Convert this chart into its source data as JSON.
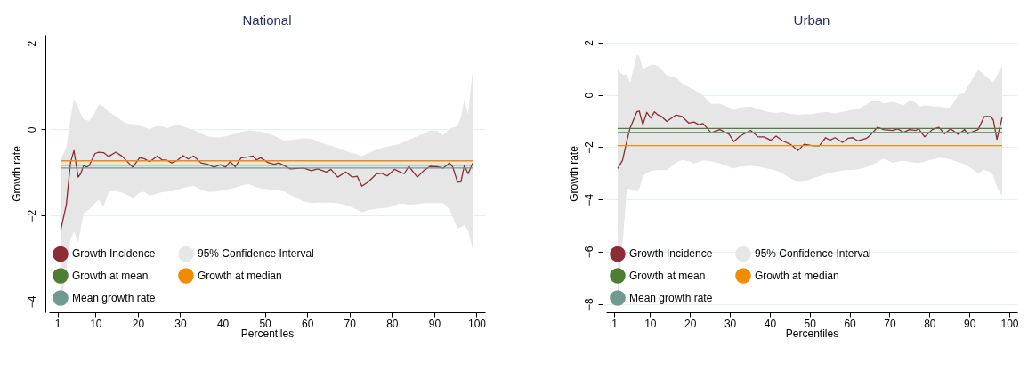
{
  "chart_data": [
    {
      "type": "line",
      "title": "National",
      "xlabel": "Percentiles",
      "ylabel": "Growth rate",
      "xlim": [
        -1,
        102
      ],
      "ylim": [
        -4.25,
        2.2
      ],
      "xticks": [
        1,
        10,
        20,
        30,
        40,
        50,
        60,
        70,
        80,
        90,
        100
      ],
      "yticks": [
        -4,
        -2,
        0,
        2
      ],
      "grid": "y",
      "legend": "bottom left",
      "series": [
        {
          "name": "Growth Incidence",
          "color": "#8b2c36",
          "x": [
            1.8,
            3.1,
            4.1,
            4.9,
            5.9,
            6.5,
            7.2,
            7.9,
            8.5,
            9.9,
            10.8,
            11.9,
            13.1,
            14.8,
            16.2,
            17.7,
            18.8,
            20.4,
            21.5,
            22.8,
            24.6,
            25.7,
            26.9,
            28.0,
            29.2,
            30.7,
            31.9,
            33.2,
            34.9,
            36.5,
            38.0,
            39.5,
            40.7,
            41.8,
            43.0,
            44.4,
            46.1,
            47.2,
            48.0,
            49.0,
            50.7,
            52.2,
            53.3,
            54.5,
            56.0,
            59.1,
            61.0,
            62.5,
            64.5,
            65.6,
            67.2,
            69.1,
            70.6,
            71.8,
            72.9,
            74.4,
            76.4,
            77.5,
            78.9,
            80.6,
            81.7,
            82.9,
            84.0,
            86.0,
            87.5,
            89.0,
            90.6,
            92.1,
            93.6,
            94.4,
            95.5,
            96.3,
            97.1,
            98.0,
            99.1
          ],
          "values": [
            -2.33,
            -1.75,
            -0.77,
            -0.49,
            -1.11,
            -1.03,
            -0.84,
            -0.88,
            -0.84,
            -0.56,
            -0.53,
            -0.54,
            -0.63,
            -0.53,
            -0.62,
            -0.77,
            -0.88,
            -0.66,
            -0.68,
            -0.75,
            -0.62,
            -0.71,
            -0.72,
            -0.78,
            -0.73,
            -0.61,
            -0.69,
            -0.62,
            -0.78,
            -0.81,
            -0.88,
            -0.82,
            -0.88,
            -0.75,
            -0.87,
            -0.66,
            -0.64,
            -0.62,
            -0.71,
            -0.66,
            -0.77,
            -0.81,
            -0.78,
            -0.84,
            -0.92,
            -0.9,
            -0.96,
            -0.92,
            -0.99,
            -0.93,
            -1.11,
            -0.99,
            -1.11,
            -1.09,
            -1.32,
            -1.22,
            -1.03,
            -1.02,
            -1.08,
            -0.93,
            -0.98,
            -1.03,
            -0.86,
            -1.11,
            -0.96,
            -0.86,
            -0.87,
            -0.9,
            -0.78,
            -0.88,
            -1.23,
            -1.22,
            -0.84,
            -1.03,
            -0.78
          ],
          "upper": [
            -0.7,
            -0.42,
            0.25,
            0.7,
            0.52,
            0.36,
            0.23,
            0.21,
            0.2,
            0.39,
            0.58,
            0.53,
            0.4,
            0.31,
            0.2,
            0.13,
            0.12,
            0.08,
            0.05,
            0.01,
            0.08,
            0.07,
            0.03,
            0.07,
            0.11,
            0.06,
            0.03,
            -0.01,
            -0.1,
            -0.16,
            -0.18,
            -0.18,
            -0.16,
            -0.13,
            -0.1,
            -0.06,
            -0.02,
            -0.03,
            -0.04,
            -0.05,
            -0.1,
            -0.15,
            -0.2,
            -0.26,
            -0.25,
            -0.21,
            -0.22,
            -0.28,
            -0.35,
            -0.38,
            -0.43,
            -0.5,
            -0.55,
            -0.58,
            -0.62,
            -0.55,
            -0.47,
            -0.44,
            -0.4,
            -0.37,
            -0.34,
            -0.29,
            -0.24,
            -0.16,
            -0.1,
            -0.03,
            -0.03,
            -0.14,
            0.01,
            0.05,
            0.07,
            0.29,
            0.7,
            0.35,
            1.4
          ],
          "lower": [
            -4.08,
            -3.23,
            -2.55,
            -2.37,
            -2.62,
            -2.3,
            -1.96,
            -1.9,
            -1.86,
            -1.71,
            -1.64,
            -1.8,
            -1.45,
            -1.43,
            -1.47,
            -1.53,
            -1.59,
            -1.47,
            -1.45,
            -1.54,
            -1.49,
            -1.46,
            -1.45,
            -1.44,
            -1.41,
            -1.36,
            -1.33,
            -1.31,
            -1.4,
            -1.45,
            -1.45,
            -1.43,
            -1.4,
            -1.38,
            -1.35,
            -1.31,
            -1.27,
            -1.31,
            -1.34,
            -1.37,
            -1.39,
            -1.4,
            -1.42,
            -1.44,
            -1.52,
            -1.67,
            -1.71,
            -1.7,
            -1.7,
            -1.7,
            -1.71,
            -1.76,
            -1.81,
            -1.87,
            -1.93,
            -1.88,
            -1.84,
            -1.83,
            -1.82,
            -1.77,
            -1.73,
            -1.73,
            -1.75,
            -1.74,
            -1.72,
            -1.71,
            -1.71,
            -1.72,
            -1.85,
            -2.05,
            -2.3,
            -2.27,
            -2.22,
            -2.35,
            -2.79
          ]
        },
        {
          "type": "area",
          "name": "95% Confidence Interval",
          "color": "#e6e6e6"
        },
        {
          "type": "line",
          "name": "Growth at mean",
          "color": "#4e7d33",
          "x": [
            1.8,
            99.1
          ],
          "values": [
            -0.83,
            -0.83
          ]
        },
        {
          "type": "line",
          "name": "Growth at median",
          "color": "#f08c00",
          "x": [
            1.8,
            99.1
          ],
          "values": [
            -0.73,
            -0.73
          ]
        },
        {
          "type": "line",
          "name": "Mean growth rate",
          "color": "#6f9a8f",
          "x": [
            1.8,
            99.1
          ],
          "values": [
            -0.9,
            -0.9
          ]
        }
      ]
    },
    {
      "type": "line",
      "title": "Urban",
      "xlabel": "Percentiles",
      "ylabel": "Growth rate",
      "xlim": [
        -1,
        102
      ],
      "ylim": [
        -8.32,
        2.3
      ],
      "xticks": [
        1,
        10,
        20,
        30,
        40,
        50,
        60,
        70,
        80,
        90,
        100
      ],
      "yticks": [
        -8,
        -6,
        -4,
        -2,
        0,
        2
      ],
      "grid": "y",
      "legend": "bottom left",
      "series": [
        {
          "name": "Growth Incidence",
          "color": "#8b2c36",
          "x": [
            1.9,
            3.1,
            4.2,
            5.0,
            6.7,
            7.3,
            8.2,
            9.2,
            10.2,
            11.1,
            12.0,
            12.9,
            14.2,
            16.5,
            18.0,
            19.7,
            21.0,
            22.2,
            23.3,
            25.3,
            27.5,
            29.8,
            31.0,
            32.5,
            35.2,
            37.1,
            38.6,
            40.2,
            41.6,
            43.2,
            45.1,
            47.1,
            48.6,
            50.9,
            52.4,
            54.0,
            55.1,
            56.3,
            58.2,
            59.7,
            60.8,
            62.0,
            64.3,
            65.4,
            67.0,
            68.5,
            70.8,
            72.0,
            73.5,
            75.0,
            76.6,
            77.3,
            78.8,
            80.7,
            82.3,
            83.8,
            85.3,
            87.2,
            88.8,
            89.5,
            92.2,
            93.7,
            95.3,
            96.0,
            96.9,
            98.2
          ],
          "values": [
            -2.82,
            -2.51,
            -1.76,
            -1.27,
            -0.65,
            -0.62,
            -1.14,
            -0.67,
            -0.89,
            -0.65,
            -0.77,
            -0.83,
            -1.02,
            -0.77,
            -0.83,
            -1.08,
            -1.04,
            -1.14,
            -1.1,
            -1.45,
            -1.33,
            -1.51,
            -1.79,
            -1.58,
            -1.36,
            -1.61,
            -1.61,
            -1.74,
            -1.58,
            -1.76,
            -1.89,
            -2.13,
            -1.89,
            -1.95,
            -1.95,
            -1.64,
            -1.74,
            -1.64,
            -1.82,
            -1.66,
            -1.64,
            -1.76,
            -1.66,
            -1.51,
            -1.24,
            -1.33,
            -1.36,
            -1.3,
            -1.43,
            -1.33,
            -1.36,
            -1.3,
            -1.61,
            -1.33,
            -1.24,
            -1.49,
            -1.3,
            -1.51,
            -1.33,
            -1.49,
            -1.33,
            -0.83,
            -0.83,
            -0.96,
            -1.7,
            -0.87
          ],
          "upper": [
            0.99,
            0.78,
            0.78,
            0.47,
            1.52,
            1.48,
            0.99,
            1.07,
            1.14,
            1.16,
            1.1,
            0.96,
            0.75,
            0.66,
            0.45,
            0.28,
            0.2,
            0.09,
            -0.02,
            -0.35,
            -0.34,
            -0.48,
            -0.58,
            -0.48,
            -0.45,
            -0.54,
            -0.62,
            -0.68,
            -0.69,
            -0.65,
            -0.73,
            -0.76,
            -0.75,
            -0.74,
            -0.69,
            -0.65,
            -0.68,
            -0.71,
            -0.65,
            -0.6,
            -0.57,
            -0.54,
            -0.38,
            -0.25,
            -0.21,
            -0.33,
            -0.27,
            -0.33,
            -0.41,
            -0.21,
            -0.3,
            -0.46,
            -0.41,
            -0.44,
            -0.45,
            -0.48,
            -0.48,
            -0.02,
            0.1,
            0.28,
            0.97,
            0.77,
            0.56,
            0.47,
            0.73,
            1.12
          ],
          "lower": [
            -7.96,
            -5.73,
            -3.6,
            -3.6,
            -3.7,
            -3.6,
            -3.1,
            -2.99,
            -2.92,
            -2.89,
            -2.88,
            -2.88,
            -2.88,
            -2.6,
            -2.5,
            -2.53,
            -2.63,
            -2.57,
            -2.51,
            -2.54,
            -2.63,
            -2.75,
            -2.82,
            -2.75,
            -2.72,
            -2.75,
            -2.8,
            -2.84,
            -2.9,
            -3.0,
            -3.19,
            -3.33,
            -3.32,
            -3.19,
            -3.11,
            -3.03,
            -2.99,
            -2.95,
            -2.89,
            -2.88,
            -2.87,
            -2.86,
            -2.76,
            -2.7,
            -2.57,
            -2.44,
            -2.6,
            -2.56,
            -2.52,
            -2.57,
            -2.6,
            -2.6,
            -2.56,
            -2.47,
            -2.41,
            -2.42,
            -2.47,
            -2.58,
            -2.65,
            -2.7,
            -3.0,
            -2.87,
            -2.96,
            -3.1,
            -3.53,
            -3.87
          ]
        },
        {
          "type": "area",
          "name": "95% Confidence Interval",
          "color": "#e6e6e6"
        },
        {
          "type": "line",
          "name": "Growth at mean",
          "color": "#4e7d33",
          "x": [
            1.9,
            98.2
          ],
          "values": [
            -1.29,
            -1.29
          ]
        },
        {
          "type": "line",
          "name": "Growth at median",
          "color": "#f08c00",
          "x": [
            1.9,
            98.2
          ],
          "values": [
            -1.94,
            -1.94
          ]
        },
        {
          "type": "line",
          "name": "Mean growth rate",
          "color": "#6f9a8f",
          "x": [
            1.9,
            98.2
          ],
          "values": [
            -1.43,
            -1.43
          ]
        }
      ]
    }
  ]
}
